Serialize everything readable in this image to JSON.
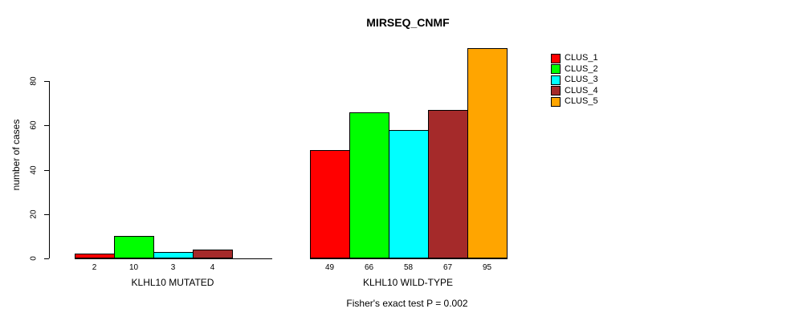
{
  "chart_data": {
    "type": "bar",
    "title": "MIRSEQ_CNMF",
    "ylabel": "number of cases",
    "yticks": [
      0,
      20,
      40,
      60,
      80
    ],
    "ylim": [
      0,
      95
    ],
    "grid": false,
    "legend_position": "right-outside",
    "legend": [
      "CLUS_1",
      "CLUS_2",
      "CLUS_3",
      "CLUS_4",
      "CLUS_5"
    ],
    "series_colors": [
      "#FF0000",
      "#00FF00",
      "#00FFFF",
      "#A52A2A",
      "#FFA500"
    ],
    "groups": [
      {
        "label": "KLHL10 MUTATED",
        "bar_labels": [
          "2",
          "10",
          "3",
          "4"
        ],
        "values": [
          2,
          10,
          3,
          4,
          0
        ]
      },
      {
        "label": "KLHL10 WILD-TYPE",
        "bar_labels": [
          "49",
          "66",
          "58",
          "67",
          "95"
        ],
        "values": [
          49,
          66,
          58,
          67,
          95
        ]
      }
    ],
    "caption": "Fisher's exact test P = 0.002"
  }
}
